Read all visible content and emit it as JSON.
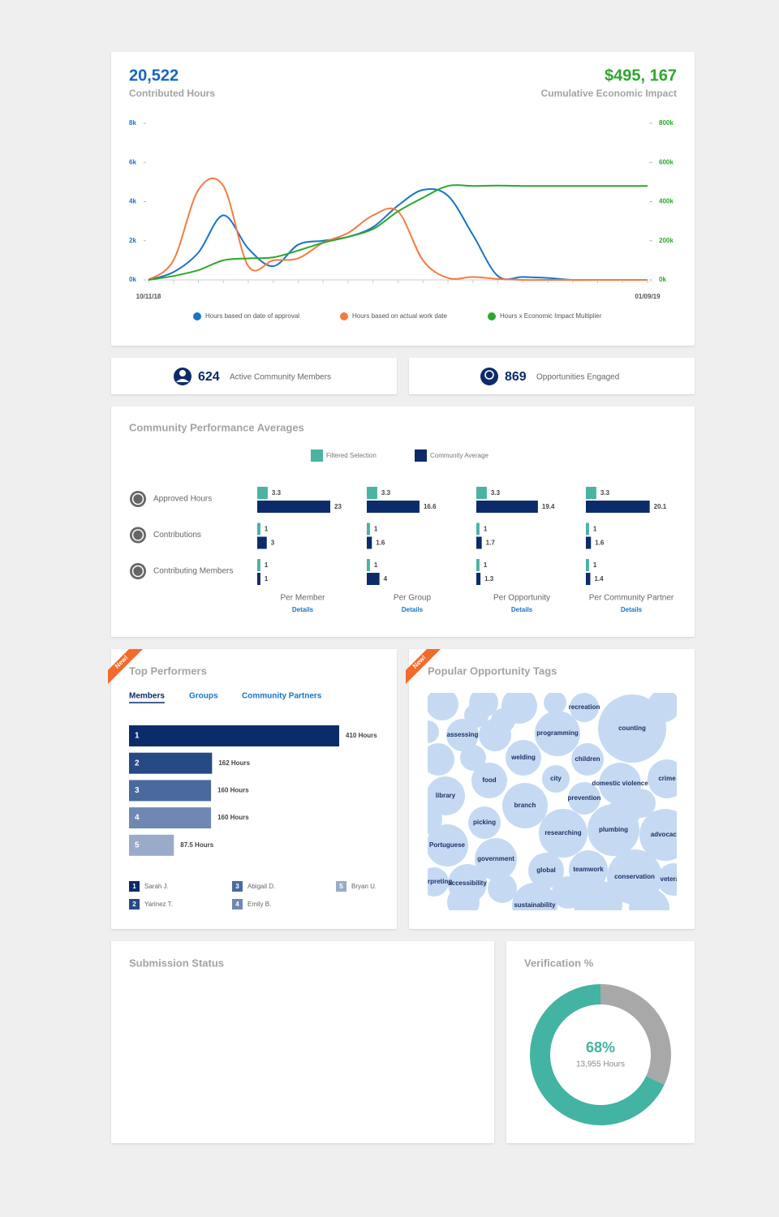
{
  "summary": {
    "contributed_hours": {
      "value": "20,522",
      "label": "Contributed Hours"
    },
    "economic_impact": {
      "value": "$495, 167",
      "label": "Cumulative Economic Impact"
    }
  },
  "stats": [
    {
      "value": 624,
      "label": "Active Community Members"
    },
    {
      "value": 869,
      "label": "Opportunities Engaged"
    }
  ],
  "chart_data": [
    {
      "type": "line",
      "categories": [
        "10/11/18",
        null,
        null,
        null,
        null,
        null,
        null,
        null,
        null,
        null,
        null,
        null,
        null,
        null,
        null,
        null,
        null,
        null,
        null,
        null,
        "01/09/19"
      ],
      "series": [
        {
          "name": "Hours based on date of approval",
          "color": "#1a73c9",
          "values": [
            0,
            400,
            1400,
            3300,
            1600,
            700,
            1800,
            2000,
            2200,
            2700,
            3800,
            4600,
            4300,
            2300,
            200,
            150,
            100,
            0,
            0,
            0,
            0
          ]
        },
        {
          "name": "Hours based on actual work date",
          "color": "#f47b42",
          "values": [
            0,
            1000,
            4600,
            4800,
            700,
            1000,
            1100,
            1900,
            2400,
            3300,
            3500,
            1000,
            100,
            150,
            50,
            0,
            0,
            0,
            0,
            0,
            0
          ]
        },
        {
          "name": "Hours x Economic Impact Multiplier",
          "color": "#2ea62e",
          "axis": "y2",
          "values": [
            0,
            20000,
            50000,
            100000,
            110000,
            115000,
            150000,
            190000,
            220000,
            260000,
            350000,
            420000,
            480000,
            480000,
            482000,
            480000,
            480000,
            480000,
            480000,
            480000,
            480000
          ]
        }
      ],
      "ylim": [
        0,
        8000
      ],
      "yticks": [
        {
          "value": 0,
          "label": "0k"
        },
        {
          "value": 2000,
          "label": "2k"
        },
        {
          "value": 4000,
          "label": "4k"
        },
        {
          "value": 6000,
          "label": "6k"
        },
        {
          "value": 8000,
          "label": "8k"
        }
      ],
      "y2lim": [
        0,
        800000
      ],
      "y2ticks": [
        {
          "value": 0,
          "label": "0k"
        },
        {
          "value": 200000,
          "label": "200k"
        },
        {
          "value": 400000,
          "label": "400k"
        },
        {
          "value": 600000,
          "label": "600k"
        },
        {
          "value": 800000,
          "label": "800k"
        }
      ],
      "ytick_color": "#1a73c9",
      "y2tick_color": "#2ea62e"
    },
    {
      "type": "bar",
      "orientation": "horizontal",
      "title": "Community Performance Averages",
      "categories": [
        "Approved Hours",
        "Contributions",
        "Contributing Members"
      ],
      "series_names": [
        "Filtered Selection",
        "Community Average"
      ],
      "colors": [
        "#4ab3a2",
        "#0c2b6b"
      ],
      "panels": [
        {
          "name": "Per Member",
          "link": "Details",
          "values": [
            [
              3.3,
              1,
              1
            ],
            [
              23,
              3,
              1
            ]
          ]
        },
        {
          "name": "Per Group",
          "link": "Details",
          "values": [
            [
              3.3,
              1,
              1
            ],
            [
              16.6,
              1.6,
              4
            ]
          ]
        },
        {
          "name": "Per Opportunity",
          "link": "Details",
          "values": [
            [
              3.3,
              1,
              1
            ],
            [
              19.4,
              1.7,
              1.3
            ]
          ]
        },
        {
          "name": "Per Community Partner",
          "link": "Details",
          "values": [
            [
              3.3,
              1,
              1
            ],
            [
              20.1,
              1.6,
              1.4
            ]
          ]
        }
      ]
    },
    {
      "type": "bar",
      "orientation": "horizontal",
      "title": "Top Performers",
      "badge": "New!",
      "tabs": [
        "Members",
        "Groups",
        "Community Partners"
      ],
      "active_tab": 0,
      "categories": [
        "1",
        "2",
        "3",
        "4",
        "5"
      ],
      "names": [
        "Sarah J.",
        "Yarinez T.",
        "Abigail D.",
        "Emily B.",
        "Bryan U."
      ],
      "values": [
        410,
        162,
        160,
        160,
        87.5
      ],
      "value_labels": [
        "410 Hours",
        "162 Hours",
        "160 Hours",
        "160 Hours",
        "87.5 Hours"
      ],
      "colors": [
        "#0c2b6b",
        "#264a85",
        "#4a6a9e",
        "#6f88b3",
        "#9aabc9"
      ]
    },
    {
      "type": "donut",
      "title": "Verification %",
      "values": [
        68,
        32
      ],
      "value_label": "68%",
      "subtitle": "13,955 Hours",
      "colors": [
        "#43b3a3",
        "#a8a8a8"
      ]
    }
  ],
  "tags": {
    "title": "Popular Opportunity Tags",
    "badge": "New!",
    "items": [
      "recreation",
      "counting",
      "assessing",
      "programming",
      "welding",
      "children",
      "food",
      "city",
      "domestic violence",
      "crime",
      "library",
      "prevention",
      "branch",
      "picking",
      "researching",
      "plumbing",
      "advocacy",
      "Portuguese",
      "government",
      "global",
      "teamwork",
      "conservation",
      "veterans",
      "interpreting",
      "accessibility",
      "sustainability"
    ]
  },
  "submission_status": {
    "title": "Submission Status"
  }
}
